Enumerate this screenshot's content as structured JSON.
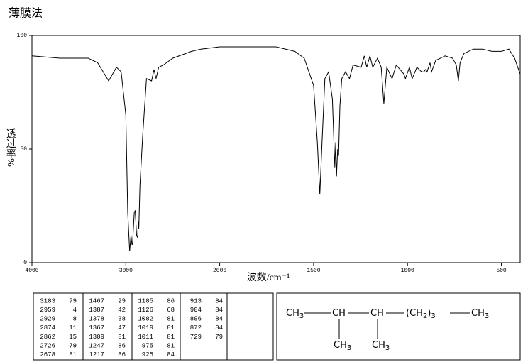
{
  "chart_data": {
    "type": "line",
    "title": "薄膜法",
    "xlabel": "波数/cm⁻¹",
    "ylabel": "透过率%",
    "xlim": [
      4000,
      400
    ],
    "xscale_break": 2000,
    "xticks": [
      4000,
      3000,
      2000,
      1500,
      1000,
      500
    ],
    "ylim": [
      0,
      100
    ],
    "yticks": [
      0,
      50,
      100
    ],
    "color": "#000000",
    "x": [
      4000,
      3700,
      3400,
      3300,
      3183,
      3100,
      3050,
      3000,
      2980,
      2959,
      2945,
      2935,
      2929,
      2910,
      2900,
      2885,
      2874,
      2868,
      2862,
      2850,
      2820,
      2780,
      2726,
      2700,
      2678,
      2650,
      2600,
      2500,
      2300,
      2200,
      2000,
      1900,
      1700,
      1600,
      1550,
      1500,
      1480,
      1467,
      1455,
      1440,
      1420,
      1400,
      1387,
      1382,
      1378,
      1372,
      1367,
      1360,
      1350,
      1330,
      1309,
      1290,
      1247,
      1230,
      1217,
      1200,
      1185,
      1160,
      1140,
      1126,
      1110,
      1082,
      1060,
      1019,
      1011,
      990,
      975,
      950,
      925,
      913,
      904,
      896,
      880,
      872,
      850,
      800,
      760,
      740,
      729,
      720,
      700,
      650,
      600,
      550,
      500,
      460,
      430,
      400
    ],
    "values": [
      91,
      90,
      90,
      88,
      80,
      86,
      84,
      65,
      22,
      5,
      12,
      8,
      8,
      22,
      23,
      12,
      11,
      18,
      15,
      34,
      56,
      81,
      80,
      85,
      81,
      86,
      87,
      90,
      93,
      94,
      95,
      95,
      95,
      93,
      90,
      78,
      53,
      30,
      53,
      81,
      84,
      72,
      42,
      53,
      38,
      50,
      47,
      69,
      81,
      84,
      81,
      87,
      86,
      91,
      86,
      91,
      86,
      90,
      86,
      70,
      86,
      81,
      87,
      83,
      81,
      86,
      81,
      86,
      84,
      84,
      85,
      84,
      88,
      84,
      89,
      91,
      90,
      87,
      80,
      88,
      92,
      94,
      94,
      93,
      93,
      94,
      90,
      83
    ]
  },
  "peak_table": {
    "columns": [
      [
        [
          "3183",
          "79"
        ],
        [
          "2959",
          "4"
        ],
        [
          "2929",
          "8"
        ],
        [
          "2874",
          "11"
        ],
        [
          "2862",
          "15"
        ],
        [
          "2726",
          "79"
        ],
        [
          "2678",
          "81"
        ]
      ],
      [
        [
          "1467",
          "29"
        ],
        [
          "1387",
          "42"
        ],
        [
          "1378",
          "38"
        ],
        [
          "1367",
          "47"
        ],
        [
          "1309",
          "81"
        ],
        [
          "1247",
          "86"
        ],
        [
          "1217",
          "86"
        ]
      ],
      [
        [
          "1185",
          "86"
        ],
        [
          "1126",
          "68"
        ],
        [
          "1082",
          "81"
        ],
        [
          "1019",
          "81"
        ],
        [
          "1011",
          "81"
        ],
        [
          "975",
          "81"
        ],
        [
          "925",
          "84"
        ]
      ],
      [
        [
          "913",
          "84"
        ],
        [
          "904",
          "84"
        ],
        [
          "896",
          "84"
        ],
        [
          "872",
          "84"
        ],
        [
          "729",
          "79"
        ]
      ]
    ]
  },
  "structure": {
    "main": [
      [
        {
          "text": "CH"
        },
        {
          "text": "3",
          "sub": true
        }
      ],
      [
        {
          "text": "CH"
        }
      ],
      [
        {
          "text": "CH"
        }
      ],
      [
        {
          "text": "(CH"
        },
        {
          "text": "2",
          "sub": true
        },
        {
          "text": ")"
        },
        {
          "text": "3",
          "sub": true
        }
      ],
      [
        {
          "text": "CH"
        },
        {
          "text": "3",
          "sub": true
        }
      ]
    ],
    "branches": [
      [
        {
          "text": "CH"
        },
        {
          "text": "3",
          "sub": true
        }
      ],
      [
        {
          "text": "CH"
        },
        {
          "text": "3",
          "sub": true
        }
      ]
    ]
  }
}
